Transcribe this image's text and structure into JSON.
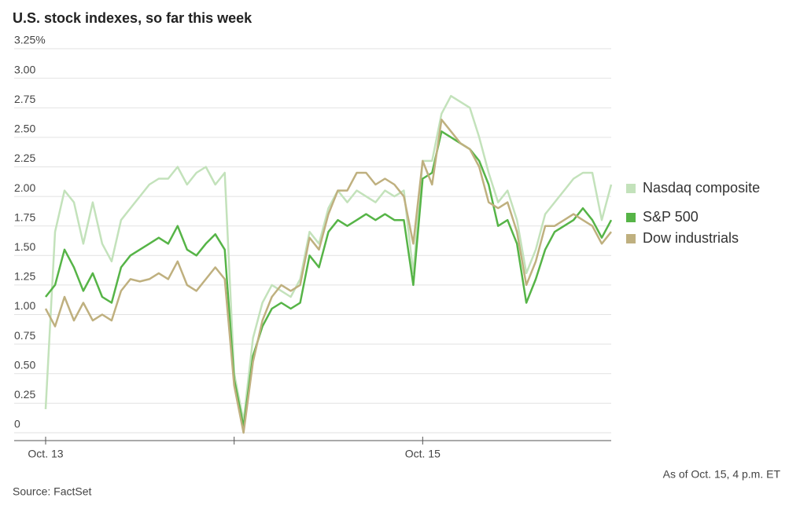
{
  "chart_data": {
    "type": "line",
    "title": "U.S. stock indexes, so far this week",
    "source": "Source: FactSet",
    "note": "As of Oct. 15, 4 p.m. ET",
    "x": [
      0,
      1,
      2,
      3,
      4,
      5,
      6,
      7,
      8,
      9,
      10,
      11,
      12,
      13,
      14,
      15,
      16,
      17,
      18,
      19,
      20,
      21,
      22,
      23,
      24,
      25,
      26,
      27,
      28,
      29,
      30,
      31,
      32,
      33,
      34,
      35,
      36,
      37,
      38,
      39,
      40,
      41,
      42,
      43,
      44,
      45,
      46,
      47,
      48,
      49,
      50,
      51,
      52,
      53,
      54,
      55,
      56,
      57,
      58,
      59,
      60
    ],
    "xlim": [
      0,
      60
    ],
    "xticks": [
      {
        "value": 0,
        "label": "Oct. 13"
      },
      {
        "value": 20,
        "label": null
      },
      {
        "value": 40,
        "label": "Oct. 15"
      }
    ],
    "ylim": [
      0,
      3.25
    ],
    "yticks": [
      0,
      0.25,
      {
        "value": 0.5,
        "label": "0.50"
      },
      0.75,
      {
        "value": 1,
        "label": "1.00"
      },
      1.25,
      {
        "value": 1.5,
        "label": "1.50"
      },
      1.75,
      {
        "value": 2,
        "label": "2.00"
      },
      2.25,
      {
        "value": 2.5,
        "label": "2.50"
      },
      2.75,
      {
        "value": 3,
        "label": "3.00"
      },
      {
        "value": 3.25,
        "label": "3.25%"
      }
    ],
    "grid": true,
    "legend": "right",
    "series": [
      {
        "name": "Nasdaq composite",
        "color": "#c3e2bb",
        "values": [
          0.2,
          1.7,
          2.05,
          1.95,
          1.6,
          1.95,
          1.6,
          1.45,
          1.8,
          1.9,
          2.0,
          2.1,
          2.15,
          2.15,
          2.25,
          2.1,
          2.2,
          2.25,
          2.1,
          2.2,
          0.5,
          0.1,
          0.8,
          1.1,
          1.25,
          1.2,
          1.15,
          1.3,
          1.7,
          1.6,
          1.9,
          2.05,
          1.95,
          2.05,
          2.0,
          1.95,
          2.05,
          2.0,
          2.05,
          1.35,
          2.3,
          2.3,
          2.7,
          2.85,
          2.8,
          2.75,
          2.5,
          2.2,
          1.95,
          2.05,
          1.8,
          1.35,
          1.55,
          1.85,
          1.95,
          2.05,
          2.15,
          2.2,
          2.2,
          1.8,
          2.1
        ]
      },
      {
        "name": "S&P 500",
        "color": "#56b447",
        "values": [
          1.15,
          1.25,
          1.55,
          1.4,
          1.2,
          1.35,
          1.15,
          1.1,
          1.4,
          1.5,
          1.55,
          1.6,
          1.65,
          1.6,
          1.75,
          1.55,
          1.5,
          1.6,
          1.68,
          1.55,
          0.45,
          0.05,
          0.65,
          0.9,
          1.05,
          1.1,
          1.05,
          1.1,
          1.5,
          1.4,
          1.7,
          1.8,
          1.75,
          1.8,
          1.85,
          1.8,
          1.85,
          1.8,
          1.8,
          1.25,
          2.15,
          2.2,
          2.55,
          2.5,
          2.45,
          2.4,
          2.3,
          2.1,
          1.75,
          1.8,
          1.6,
          1.1,
          1.3,
          1.55,
          1.7,
          1.75,
          1.8,
          1.9,
          1.8,
          1.65,
          1.8
        ]
      },
      {
        "name": "Dow industrials",
        "color": "#bfb07f",
        "values": [
          1.05,
          0.9,
          1.15,
          0.95,
          1.1,
          0.95,
          1.0,
          0.95,
          1.2,
          1.3,
          1.28,
          1.3,
          1.35,
          1.3,
          1.45,
          1.25,
          1.2,
          1.3,
          1.4,
          1.3,
          0.4,
          0.0,
          0.6,
          0.95,
          1.15,
          1.25,
          1.2,
          1.25,
          1.65,
          1.55,
          1.85,
          2.05,
          2.05,
          2.2,
          2.2,
          2.1,
          2.15,
          2.1,
          2.0,
          1.6,
          2.3,
          2.1,
          2.65,
          2.55,
          2.45,
          2.4,
          2.25,
          1.95,
          1.9,
          1.95,
          1.7,
          1.25,
          1.45,
          1.75,
          1.75,
          1.8,
          1.85,
          1.8,
          1.75,
          1.6,
          1.7
        ]
      }
    ]
  }
}
